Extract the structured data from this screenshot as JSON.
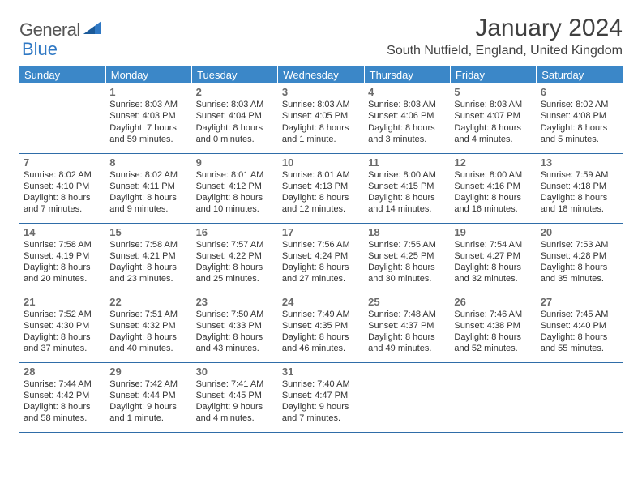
{
  "logo": {
    "text1": "General",
    "text2": "Blue"
  },
  "title": "January 2024",
  "location": "South Nutfield, England, United Kingdom",
  "colors": {
    "header_bg": "#3b87c8",
    "header_text": "#ffffff",
    "week_divider": "#2f6da8",
    "daynum": "#6a6a6a",
    "body_text": "#333333",
    "title_text": "#404040",
    "logo_gray": "#555555",
    "logo_blue": "#2f78c4"
  },
  "typography": {
    "title_fontsize": 30,
    "location_fontsize": 16,
    "header_fontsize": 13,
    "daynum_fontsize": 13,
    "info_fontsize": 11
  },
  "days_of_week": [
    "Sunday",
    "Monday",
    "Tuesday",
    "Wednesday",
    "Thursday",
    "Friday",
    "Saturday"
  ],
  "weeks": [
    [
      null,
      {
        "n": "1",
        "sunrise": "Sunrise: 8:03 AM",
        "sunset": "Sunset: 4:03 PM",
        "d1": "Daylight: 7 hours",
        "d2": "and 59 minutes."
      },
      {
        "n": "2",
        "sunrise": "Sunrise: 8:03 AM",
        "sunset": "Sunset: 4:04 PM",
        "d1": "Daylight: 8 hours",
        "d2": "and 0 minutes."
      },
      {
        "n": "3",
        "sunrise": "Sunrise: 8:03 AM",
        "sunset": "Sunset: 4:05 PM",
        "d1": "Daylight: 8 hours",
        "d2": "and 1 minute."
      },
      {
        "n": "4",
        "sunrise": "Sunrise: 8:03 AM",
        "sunset": "Sunset: 4:06 PM",
        "d1": "Daylight: 8 hours",
        "d2": "and 3 minutes."
      },
      {
        "n": "5",
        "sunrise": "Sunrise: 8:03 AM",
        "sunset": "Sunset: 4:07 PM",
        "d1": "Daylight: 8 hours",
        "d2": "and 4 minutes."
      },
      {
        "n": "6",
        "sunrise": "Sunrise: 8:02 AM",
        "sunset": "Sunset: 4:08 PM",
        "d1": "Daylight: 8 hours",
        "d2": "and 5 minutes."
      }
    ],
    [
      {
        "n": "7",
        "sunrise": "Sunrise: 8:02 AM",
        "sunset": "Sunset: 4:10 PM",
        "d1": "Daylight: 8 hours",
        "d2": "and 7 minutes."
      },
      {
        "n": "8",
        "sunrise": "Sunrise: 8:02 AM",
        "sunset": "Sunset: 4:11 PM",
        "d1": "Daylight: 8 hours",
        "d2": "and 9 minutes."
      },
      {
        "n": "9",
        "sunrise": "Sunrise: 8:01 AM",
        "sunset": "Sunset: 4:12 PM",
        "d1": "Daylight: 8 hours",
        "d2": "and 10 minutes."
      },
      {
        "n": "10",
        "sunrise": "Sunrise: 8:01 AM",
        "sunset": "Sunset: 4:13 PM",
        "d1": "Daylight: 8 hours",
        "d2": "and 12 minutes."
      },
      {
        "n": "11",
        "sunrise": "Sunrise: 8:00 AM",
        "sunset": "Sunset: 4:15 PM",
        "d1": "Daylight: 8 hours",
        "d2": "and 14 minutes."
      },
      {
        "n": "12",
        "sunrise": "Sunrise: 8:00 AM",
        "sunset": "Sunset: 4:16 PM",
        "d1": "Daylight: 8 hours",
        "d2": "and 16 minutes."
      },
      {
        "n": "13",
        "sunrise": "Sunrise: 7:59 AM",
        "sunset": "Sunset: 4:18 PM",
        "d1": "Daylight: 8 hours",
        "d2": "and 18 minutes."
      }
    ],
    [
      {
        "n": "14",
        "sunrise": "Sunrise: 7:58 AM",
        "sunset": "Sunset: 4:19 PM",
        "d1": "Daylight: 8 hours",
        "d2": "and 20 minutes."
      },
      {
        "n": "15",
        "sunrise": "Sunrise: 7:58 AM",
        "sunset": "Sunset: 4:21 PM",
        "d1": "Daylight: 8 hours",
        "d2": "and 23 minutes."
      },
      {
        "n": "16",
        "sunrise": "Sunrise: 7:57 AM",
        "sunset": "Sunset: 4:22 PM",
        "d1": "Daylight: 8 hours",
        "d2": "and 25 minutes."
      },
      {
        "n": "17",
        "sunrise": "Sunrise: 7:56 AM",
        "sunset": "Sunset: 4:24 PM",
        "d1": "Daylight: 8 hours",
        "d2": "and 27 minutes."
      },
      {
        "n": "18",
        "sunrise": "Sunrise: 7:55 AM",
        "sunset": "Sunset: 4:25 PM",
        "d1": "Daylight: 8 hours",
        "d2": "and 30 minutes."
      },
      {
        "n": "19",
        "sunrise": "Sunrise: 7:54 AM",
        "sunset": "Sunset: 4:27 PM",
        "d1": "Daylight: 8 hours",
        "d2": "and 32 minutes."
      },
      {
        "n": "20",
        "sunrise": "Sunrise: 7:53 AM",
        "sunset": "Sunset: 4:28 PM",
        "d1": "Daylight: 8 hours",
        "d2": "and 35 minutes."
      }
    ],
    [
      {
        "n": "21",
        "sunrise": "Sunrise: 7:52 AM",
        "sunset": "Sunset: 4:30 PM",
        "d1": "Daylight: 8 hours",
        "d2": "and 37 minutes."
      },
      {
        "n": "22",
        "sunrise": "Sunrise: 7:51 AM",
        "sunset": "Sunset: 4:32 PM",
        "d1": "Daylight: 8 hours",
        "d2": "and 40 minutes."
      },
      {
        "n": "23",
        "sunrise": "Sunrise: 7:50 AM",
        "sunset": "Sunset: 4:33 PM",
        "d1": "Daylight: 8 hours",
        "d2": "and 43 minutes."
      },
      {
        "n": "24",
        "sunrise": "Sunrise: 7:49 AM",
        "sunset": "Sunset: 4:35 PM",
        "d1": "Daylight: 8 hours",
        "d2": "and 46 minutes."
      },
      {
        "n": "25",
        "sunrise": "Sunrise: 7:48 AM",
        "sunset": "Sunset: 4:37 PM",
        "d1": "Daylight: 8 hours",
        "d2": "and 49 minutes."
      },
      {
        "n": "26",
        "sunrise": "Sunrise: 7:46 AM",
        "sunset": "Sunset: 4:38 PM",
        "d1": "Daylight: 8 hours",
        "d2": "and 52 minutes."
      },
      {
        "n": "27",
        "sunrise": "Sunrise: 7:45 AM",
        "sunset": "Sunset: 4:40 PM",
        "d1": "Daylight: 8 hours",
        "d2": "and 55 minutes."
      }
    ],
    [
      {
        "n": "28",
        "sunrise": "Sunrise: 7:44 AM",
        "sunset": "Sunset: 4:42 PM",
        "d1": "Daylight: 8 hours",
        "d2": "and 58 minutes."
      },
      {
        "n": "29",
        "sunrise": "Sunrise: 7:42 AM",
        "sunset": "Sunset: 4:44 PM",
        "d1": "Daylight: 9 hours",
        "d2": "and 1 minute."
      },
      {
        "n": "30",
        "sunrise": "Sunrise: 7:41 AM",
        "sunset": "Sunset: 4:45 PM",
        "d1": "Daylight: 9 hours",
        "d2": "and 4 minutes."
      },
      {
        "n": "31",
        "sunrise": "Sunrise: 7:40 AM",
        "sunset": "Sunset: 4:47 PM",
        "d1": "Daylight: 9 hours",
        "d2": "and 7 minutes."
      },
      null,
      null,
      null
    ]
  ]
}
